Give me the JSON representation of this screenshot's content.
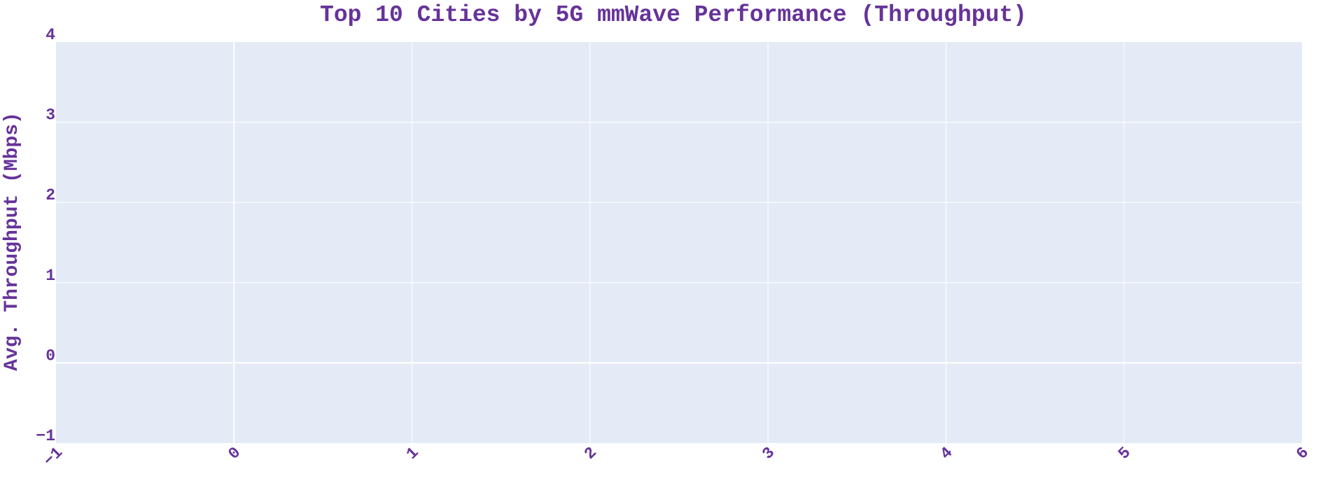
{
  "chart_data": {
    "type": "bar",
    "title": "Top 10 Cities by 5G mmWave Performance (Throughput)",
    "xlabel": "",
    "ylabel": "Avg. Throughput (Mbps)",
    "xlim": [
      -1,
      6
    ],
    "ylim": [
      -1,
      4
    ],
    "x_ticks": [
      "−1",
      "0",
      "1",
      "2",
      "3",
      "4",
      "5",
      "6"
    ],
    "y_ticks": [
      "−1",
      "0",
      "1",
      "2",
      "3",
      "4"
    ],
    "categories": [],
    "values": [],
    "grid": true,
    "legend": "none"
  },
  "colors": {
    "text": "#663399",
    "plot_background": "#E5EBF6",
    "grid": "#FFFFFF",
    "page_background": "#FFFFFF"
  }
}
